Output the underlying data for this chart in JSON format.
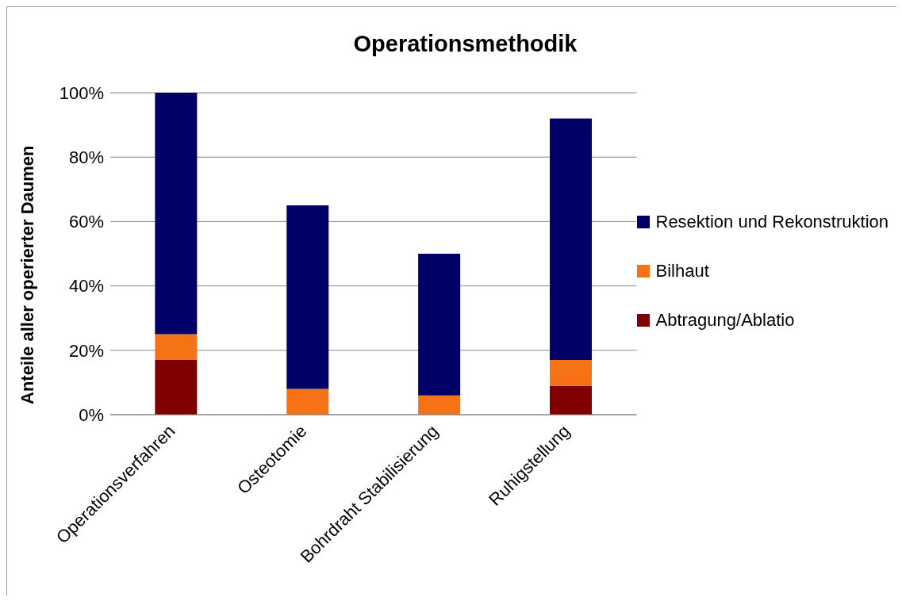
{
  "chart_data": {
    "type": "bar",
    "title": "Operationsmethodik",
    "ylabel": "Anteile aller operierter Daumen",
    "categories": [
      "Operationsverfahren",
      "Osteotomie",
      "Bohrdraht Stabilisierung",
      "Ruhigstellung"
    ],
    "stacked": true,
    "series": [
      {
        "name": "Abtragung/Ablatio",
        "color": "#800000",
        "values": [
          17,
          0,
          0,
          9
        ]
      },
      {
        "name": "Bilhaut",
        "color": "#f57215",
        "values": [
          8,
          8,
          6,
          8
        ]
      },
      {
        "name": "Resektion und Rekonstruktion",
        "color": "#000066",
        "values": [
          75,
          57,
          44,
          75
        ]
      }
    ],
    "ylim": [
      0,
      100
    ],
    "yticks": [
      {
        "value": 0,
        "label": "0%"
      },
      {
        "value": 20,
        "label": "20%"
      },
      {
        "value": 40,
        "label": "40%"
      },
      {
        "value": 60,
        "label": "60%"
      },
      {
        "value": 80,
        "label": "80%"
      },
      {
        "value": 100,
        "label": "100%"
      }
    ],
    "grid": "y",
    "legend": "right"
  }
}
